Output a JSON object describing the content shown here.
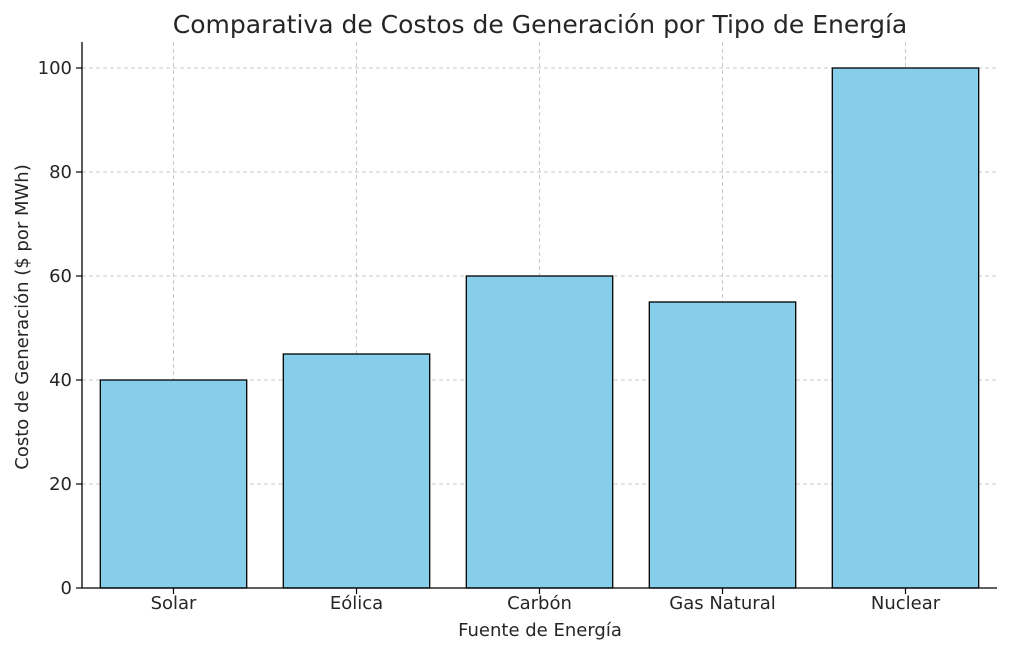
{
  "chart_data": {
    "type": "bar",
    "title": "Comparativa de Costos de Generación por Tipo de Energía",
    "xlabel": "Fuente de Energía",
    "ylabel": "Costo de Generación ($ por MWh)",
    "categories": [
      "Solar",
      "Eólica",
      "Carbón",
      "Gas Natural",
      "Nuclear"
    ],
    "values": [
      40,
      45,
      60,
      55,
      100
    ],
    "ylim": [
      0,
      105
    ],
    "yticks": [
      0,
      20,
      40,
      60,
      80,
      100
    ],
    "grid": true,
    "bar_color": "#87ceeb",
    "edge_color": "#000000"
  }
}
